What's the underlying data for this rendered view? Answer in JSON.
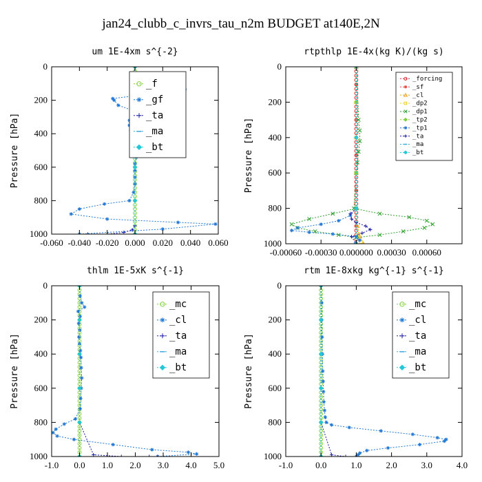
{
  "title": "jan24_clubb_c_invrs_tau_n2m  BUDGET at140E,2N",
  "chart_data": [
    {
      "type": "line",
      "title": "um  1E-4xm s^{-2}",
      "ylabel": "Pressure [hPa]",
      "xlim": [
        -0.06,
        0.06
      ],
      "ylim": [
        1000,
        0
      ],
      "xticks": [
        "-0.060",
        "-0.040",
        "-0.020",
        "0.000",
        "0.020",
        "0.040",
        "0.060"
      ],
      "yticks": [
        "0",
        "200",
        "400",
        "600",
        "800",
        "1000"
      ],
      "grid": false,
      "legend": "top-right",
      "series": [
        {
          "name": "_f",
          "color": "#7fd13b",
          "marker": "circle",
          "x": [
            0,
            0,
            0,
            0,
            0,
            0,
            0,
            0,
            0,
            0,
            0,
            0,
            0,
            0,
            0,
            0,
            0,
            0,
            0,
            0,
            0,
            0,
            0,
            0,
            0,
            0,
            0,
            0,
            0,
            0,
            0,
            0,
            0,
            0,
            0,
            0,
            0,
            0,
            0,
            0,
            0
          ],
          "y": [
            0,
            25,
            50,
            75,
            100,
            125,
            150,
            175,
            200,
            225,
            250,
            275,
            300,
            325,
            350,
            375,
            400,
            425,
            450,
            475,
            500,
            525,
            550,
            575,
            600,
            625,
            650,
            675,
            700,
            725,
            750,
            775,
            800,
            825,
            850,
            875,
            900,
            925,
            950,
            975,
            1000
          ]
        },
        {
          "name": "_gf",
          "color": "#1f77d4",
          "marker": "star",
          "x": [
            0,
            -0.001,
            0.012,
            0.036,
            -0.016,
            -0.015,
            -0.012,
            -0.002,
            0.001,
            -0.004,
            -0.004,
            -0.003,
            -0.001,
            0.0,
            0.001,
            0.001,
            0.0,
            0.0,
            0.0,
            0.0,
            -0.001,
            -0.004,
            -0.022,
            -0.04,
            -0.046,
            -0.02,
            0.031,
            0.058,
            0.02,
            -0.04
          ],
          "y": [
            0,
            65,
            100,
            135,
            190,
            200,
            230,
            260,
            290,
            320,
            350,
            380,
            420,
            460,
            500,
            540,
            580,
            620,
            660,
            700,
            750,
            800,
            820,
            850,
            880,
            910,
            930,
            940,
            970,
            1000
          ]
        },
        {
          "name": "_ta",
          "color": "#1a1aa6",
          "marker": "plus",
          "x": [
            0,
            0,
            0,
            0,
            0,
            0,
            -0.002,
            -0.008,
            -0.02,
            -0.034
          ],
          "y": [
            0,
            200,
            400,
            600,
            800,
            950,
            975,
            990,
            1000,
            1000
          ]
        },
        {
          "name": "_ma",
          "color": "#3ba7e0",
          "marker": "dash",
          "x": [
            0,
            0,
            0,
            0,
            0,
            0
          ],
          "y": [
            0,
            200,
            400,
            600,
            800,
            1000
          ]
        },
        {
          "name": "_bt",
          "color": "#22c8d8",
          "marker": "diamond",
          "x": [
            0,
            0,
            0,
            0,
            0,
            0
          ],
          "y": [
            0,
            200,
            400,
            600,
            800,
            1000
          ]
        }
      ]
    },
    {
      "type": "line",
      "title": "rtpthlp  1E-4x(kg K)/(kg s)",
      "ylabel": "Pressure [hPa]",
      "xlim": [
        -0.0006,
        0.0009
      ],
      "ylim": [
        1000,
        0
      ],
      "xticks": [
        "-0.00060",
        "-0.00030",
        "0.000000",
        "0.00030",
        "0.00060"
      ],
      "yticks": [
        "0",
        "200",
        "400",
        "600",
        "800",
        "1000"
      ],
      "grid": false,
      "legend": "top-right",
      "series": [
        {
          "name": "_forcing",
          "color": "#d62728",
          "marker": "circle",
          "x": [
            0,
            0,
            0,
            0,
            0,
            0,
            0,
            0,
            0,
            0,
            0,
            0,
            0,
            0,
            0,
            0,
            0,
            0,
            0,
            0,
            0,
            0,
            0,
            0,
            0,
            0,
            0,
            0,
            0,
            0,
            0,
            0,
            0,
            0,
            0,
            0,
            0,
            0,
            0,
            0,
            0
          ],
          "y": [
            0,
            25,
            50,
            75,
            100,
            125,
            150,
            175,
            200,
            225,
            250,
            275,
            300,
            325,
            350,
            375,
            400,
            425,
            450,
            475,
            500,
            525,
            550,
            575,
            600,
            625,
            650,
            675,
            700,
            725,
            750,
            775,
            800,
            825,
            850,
            875,
            900,
            925,
            950,
            975,
            1000
          ]
        },
        {
          "name": "_sf",
          "color": "#e8463a",
          "marker": "star",
          "x": [
            0,
            0,
            0,
            0,
            0,
            0,
            0,
            0,
            0,
            0,
            0
          ],
          "y": [
            0,
            100,
            200,
            300,
            400,
            500,
            600,
            700,
            800,
            900,
            1000
          ]
        },
        {
          "name": "_cl",
          "color": "#f0a020",
          "marker": "triangle",
          "x": [
            0,
            0,
            0,
            0,
            0,
            1e-05,
            3e-05,
            6e-05
          ],
          "y": [
            0,
            200,
            400,
            600,
            800,
            900,
            960,
            1000
          ]
        },
        {
          "name": "_dp2",
          "color": "#f2d22e",
          "marker": "square",
          "x": [
            0,
            0,
            0,
            0,
            0,
            2e-05,
            4e-05
          ],
          "y": [
            0,
            200,
            400,
            600,
            800,
            950,
            990
          ]
        },
        {
          "name": "_dp1",
          "color": "#2ea02c",
          "marker": "x",
          "x": [
            0,
            2e-05,
            3e-05,
            3e-05,
            2e-05,
            1e-05,
            0,
            -2e-05,
            0.0002,
            0.00045,
            0.0006,
            0.00065,
            0.00058,
            0.0004,
            0.0002,
            0,
            -0.00015,
            -0.00035,
            -0.0005,
            -0.00055,
            -0.0004,
            -0.0002,
            0
          ],
          "y": [
            0,
            300,
            360,
            420,
            480,
            540,
            600,
            800,
            830,
            850,
            870,
            890,
            910,
            930,
            950,
            965,
            950,
            930,
            910,
            890,
            860,
            830,
            800
          ]
        },
        {
          "name": "_tp2",
          "color": "#7fd13b",
          "marker": "diamond",
          "x": [
            0,
            0,
            0,
            0,
            0,
            0
          ],
          "y": [
            0,
            200,
            400,
            600,
            800,
            1000
          ]
        },
        {
          "name": "_tp1",
          "color": "#1f77d4",
          "marker": "star",
          "x": [
            0,
            -5e-05,
            -0.00015,
            -0.0003,
            -0.0005,
            -0.00055,
            -0.0004,
            -0.0002,
            0,
            3e-05,
            -1e-05
          ],
          "y": [
            800,
            840,
            870,
            890,
            910,
            925,
            935,
            945,
            960,
            980,
            1000
          ]
        },
        {
          "name": "_ta",
          "color": "#1a1aa6",
          "marker": "plus",
          "x": [
            0,
            -5e-05,
            -4e-05,
            0,
            8e-05,
            0.00012,
            5e-05,
            -4e-05,
            0
          ],
          "y": [
            800,
            830,
            860,
            880,
            900,
            920,
            940,
            960,
            1000
          ]
        },
        {
          "name": "_ma",
          "color": "#3ba7e0",
          "marker": "dash",
          "x": [
            0,
            0,
            0,
            0
          ],
          "y": [
            0,
            400,
            800,
            1000
          ]
        },
        {
          "name": "_bt",
          "color": "#22c8d8",
          "marker": "diamond",
          "x": [
            0,
            0,
            0,
            0
          ],
          "y": [
            0,
            400,
            800,
            1000
          ]
        }
      ]
    },
    {
      "type": "line",
      "title": "thlm  1E-5xK s^{-1}",
      "ylabel": "Pressure [hPa]",
      "xlim": [
        -1.0,
        5.0
      ],
      "ylim": [
        1000,
        0
      ],
      "xticks": [
        "-1.0",
        "0.0",
        "1.0",
        "2.0",
        "3.0",
        "4.0",
        "5.0"
      ],
      "yticks": [
        "0",
        "200",
        "400",
        "600",
        "800",
        "1000"
      ],
      "grid": false,
      "legend": "top-right",
      "series": [
        {
          "name": "_mc",
          "color": "#7fd13b",
          "marker": "circle",
          "x": [
            0,
            0,
            0,
            0,
            0,
            0,
            0,
            0,
            0,
            0,
            0,
            0,
            0,
            0,
            0,
            0,
            0,
            0,
            0,
            0,
            0,
            0,
            0,
            0,
            0,
            0,
            0,
            0,
            0,
            0,
            0,
            0,
            0,
            0,
            0,
            0,
            0,
            0,
            0,
            0,
            0
          ],
          "y": [
            0,
            25,
            50,
            75,
            100,
            125,
            150,
            175,
            200,
            225,
            250,
            275,
            300,
            325,
            350,
            375,
            400,
            425,
            450,
            475,
            500,
            525,
            550,
            575,
            600,
            625,
            650,
            675,
            700,
            725,
            750,
            775,
            800,
            825,
            850,
            875,
            900,
            925,
            950,
            975,
            1000
          ]
        },
        {
          "name": "_cl",
          "color": "#1f77d4",
          "marker": "star",
          "x": [
            0,
            0.02,
            0.08,
            0.18,
            -0.05,
            0.02,
            -0.03,
            0.01,
            -0.02,
            0.0,
            0.03,
            0.05,
            0.06,
            0.08,
            0.06,
            0.04,
            0.02,
            -0.15,
            -0.55,
            -0.85,
            -0.95,
            -0.8,
            -0.2,
            1.2,
            2.6,
            3.9,
            4.2,
            2.8
          ],
          "y": [
            0,
            60,
            100,
            125,
            150,
            180,
            220,
            260,
            300,
            340,
            380,
            420,
            480,
            540,
            600,
            660,
            720,
            780,
            810,
            840,
            860,
            880,
            900,
            930,
            960,
            975,
            985,
            1000
          ]
        },
        {
          "name": "_ta",
          "color": "#1a1aa6",
          "marker": "plus",
          "x": [
            0,
            0,
            0,
            0,
            0,
            0.5,
            1.5,
            2.5,
            2.8
          ],
          "y": [
            0,
            200,
            400,
            600,
            800,
            990,
            1000,
            1000,
            1000
          ]
        },
        {
          "name": "_ma",
          "color": "#3ba7e0",
          "marker": "dash",
          "x": [
            0,
            0,
            0,
            0,
            0,
            0
          ],
          "y": [
            0,
            200,
            400,
            600,
            800,
            1000
          ]
        },
        {
          "name": "_bt",
          "color": "#22c8d8",
          "marker": "diamond",
          "x": [
            0,
            0,
            0,
            0,
            0,
            0
          ],
          "y": [
            0,
            200,
            400,
            600,
            800,
            1000
          ]
        }
      ]
    },
    {
      "type": "line",
      "title": "rtm  1E-8xkg kg^{-1} s^{-1}",
      "ylabel": "Pressure [hPa]",
      "xlim": [
        -1.0,
        4.0
      ],
      "ylim": [
        1000,
        0
      ],
      "xticks": [
        "-1.0",
        "0.0",
        "1.0",
        "2.0",
        "3.0",
        "4.0"
      ],
      "yticks": [
        "0",
        "200",
        "400",
        "600",
        "800",
        "1000"
      ],
      "grid": false,
      "legend": "top-right",
      "series": [
        {
          "name": "_mc",
          "color": "#7fd13b",
          "marker": "circle",
          "x": [
            0,
            0,
            0,
            0,
            0,
            0,
            0,
            0,
            0,
            0,
            0,
            0,
            0,
            0,
            0,
            0,
            0,
            0,
            0,
            0,
            0,
            0,
            0,
            0,
            0,
            0,
            0,
            0,
            0,
            0,
            0,
            0,
            0,
            0,
            0,
            0,
            0,
            0,
            0,
            0,
            0
          ],
          "y": [
            0,
            25,
            50,
            75,
            100,
            125,
            150,
            175,
            200,
            225,
            250,
            275,
            300,
            325,
            350,
            375,
            400,
            425,
            450,
            475,
            500,
            525,
            550,
            575,
            600,
            625,
            650,
            675,
            700,
            725,
            750,
            775,
            800,
            825,
            850,
            875,
            900,
            925,
            950,
            975,
            1000
          ]
        },
        {
          "name": "_cl",
          "color": "#1f77d4",
          "marker": "star",
          "x": [
            0,
            0.02,
            0.02,
            0.03,
            0.04,
            0.05,
            0.06,
            0.07,
            0.08,
            0.1,
            0.12,
            0.15,
            0.3,
            0.8,
            1.7,
            2.6,
            3.3,
            3.55,
            3.5,
            2.8,
            1.9,
            1.3,
            1.1,
            1.05,
            1.0
          ],
          "y": [
            0,
            100,
            200,
            300,
            400,
            500,
            560,
            620,
            680,
            730,
            770,
            800,
            815,
            830,
            850,
            870,
            890,
            900,
            910,
            930,
            950,
            965,
            980,
            990,
            1000
          ]
        },
        {
          "name": "_ta",
          "color": "#1a1aa6",
          "marker": "plus",
          "x": [
            0,
            0,
            0,
            0,
            0,
            0.3,
            0.7,
            1.0
          ],
          "y": [
            0,
            200,
            400,
            600,
            800,
            990,
            1000,
            1000
          ]
        },
        {
          "name": "_ma",
          "color": "#3ba7e0",
          "marker": "dash",
          "x": [
            0,
            0,
            0,
            0,
            0,
            0
          ],
          "y": [
            0,
            200,
            400,
            600,
            800,
            1000
          ]
        },
        {
          "name": "_bt",
          "color": "#22c8d8",
          "marker": "diamond",
          "x": [
            0,
            0,
            0,
            0,
            0,
            0
          ],
          "y": [
            0,
            200,
            400,
            600,
            800,
            1000
          ]
        }
      ]
    }
  ]
}
